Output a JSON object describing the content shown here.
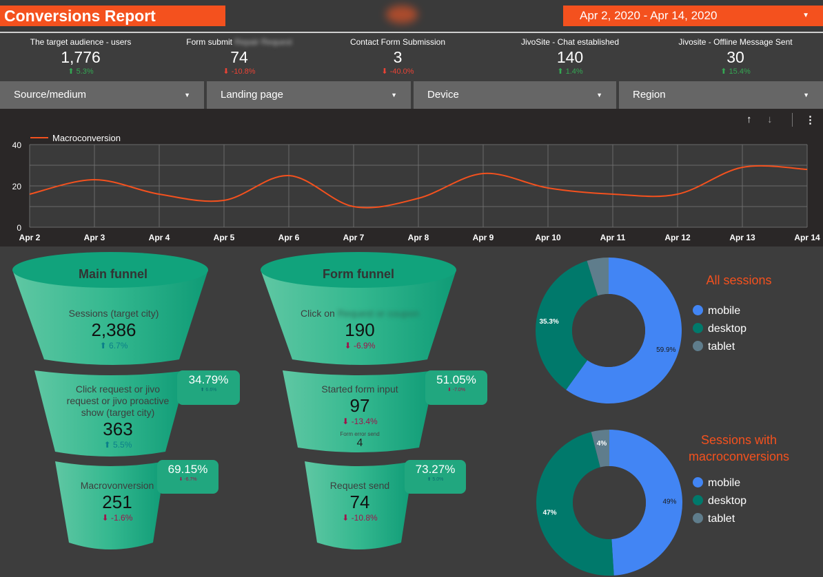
{
  "header": {
    "title": "Conversions Report",
    "date_range": "Apr 2, 2020 - Apr 14, 2020",
    "caret_icon": "caret-down-icon"
  },
  "kpis": [
    {
      "label": "The target audience - users",
      "value": "1,776",
      "change": "5.3%",
      "direction": "up"
    },
    {
      "label": "Form submit",
      "label_blurred": "Repair Request",
      "value": "74",
      "change": "-10.8%",
      "direction": "down"
    },
    {
      "label": "Contact Form Submission",
      "value": "3",
      "change": "-40.0%",
      "direction": "down"
    },
    {
      "label": "JivoSite - Chat established",
      "value": "140",
      "change": "1.4%",
      "direction": "up"
    },
    {
      "label": "Jivosite - Offline Message Sent",
      "value": "30",
      "change": "15.4%",
      "direction": "up"
    }
  ],
  "filters": [
    "Source/medium",
    "Landing page",
    "Device",
    "Region"
  ],
  "toolbar": {
    "sort_up_icon": "↑",
    "sort_down_icon": "↓",
    "more_icon": "⋮"
  },
  "chart_data": {
    "type": "line",
    "x": [
      "Apr 2",
      "Apr 3",
      "Apr 4",
      "Apr 5",
      "Apr 6",
      "Apr 7",
      "Apr 8",
      "Apr 9",
      "Apr 10",
      "Apr 11",
      "Apr 12",
      "Apr 13",
      "Apr 14"
    ],
    "series": [
      {
        "name": "Macroconversion",
        "values": [
          16,
          23,
          16,
          13,
          25,
          10,
          14,
          26,
          19,
          16,
          16,
          29,
          28
        ],
        "color": "#f4511e"
      }
    ],
    "ylim": [
      0,
      40
    ],
    "yticks": [
      "0",
      "20",
      "40"
    ],
    "grid": true,
    "legend": "top-left"
  },
  "main_funnel": {
    "title": "Main funnel",
    "stage1": {
      "label": "Sessions (target city)",
      "value": "2,386",
      "change": "6.7%",
      "direction": "up"
    },
    "stage2": {
      "label": "Click request or jivo request or jivo proactive show (target city)",
      "value": "363",
      "change": "5.5%",
      "direction": "up"
    },
    "stage3": {
      "label": "Macrovonversion",
      "value": "251",
      "change": "-1.6%",
      "direction": "down"
    },
    "rate1": {
      "value": "34.79%",
      "change": "6.6%",
      "direction": "up"
    },
    "rate2": {
      "value": "69.15%",
      "change": "-6.7%",
      "direction": "down"
    }
  },
  "form_funnel": {
    "title": "Form funnel",
    "stage1": {
      "label": "Click on",
      "label_blurred": "Request or coupon",
      "value": "190",
      "change": "-6.9%",
      "direction": "down"
    },
    "stage2": {
      "label": "Started form input",
      "value": "97",
      "change": "-13.4%",
      "direction": "down",
      "sub_label": "Form error send",
      "sub_value": "4"
    },
    "stage3": {
      "label": "Request send",
      "value": "74",
      "change": "-10.8%",
      "direction": "down"
    },
    "rate1": {
      "value": "51.05%",
      "change": "-7.0%",
      "direction": "down"
    },
    "rate2": {
      "value": "73.27%",
      "change": "5.0%",
      "direction": "up"
    }
  },
  "donut_all": {
    "title": "All sessions",
    "slices": [
      {
        "name": "mobile",
        "value": 59.9,
        "label": "59.9%",
        "color": "#4285f4"
      },
      {
        "name": "desktop",
        "value": 35.3,
        "label": "35.3%",
        "color": "#00796b"
      },
      {
        "name": "tablet",
        "value": 4.8,
        "label": "",
        "color": "#5f7d8c"
      }
    ]
  },
  "donut_macro": {
    "title": "Sessions with macroconversions",
    "slices": [
      {
        "name": "mobile",
        "value": 49,
        "label": "49%",
        "color": "#4285f4"
      },
      {
        "name": "desktop",
        "value": 47,
        "label": "47%",
        "color": "#00796b"
      },
      {
        "name": "tablet",
        "value": 4,
        "label": "4%",
        "color": "#5f7d8c"
      }
    ]
  }
}
